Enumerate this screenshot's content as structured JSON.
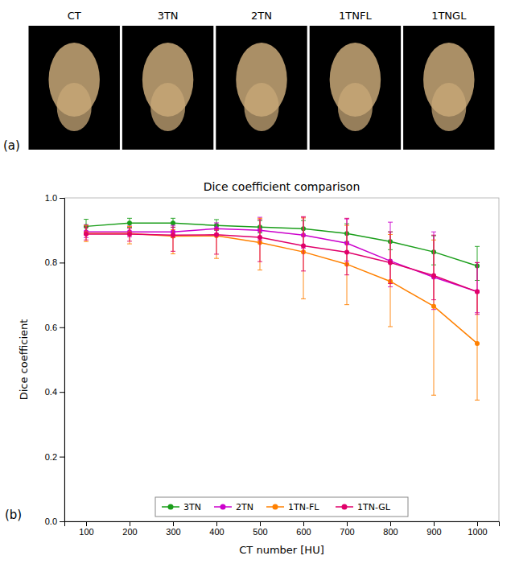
{
  "chart_data": {
    "type": "line",
    "title": "Dice coefficient comparison",
    "x_label": "CT number [HU]",
    "y_label": "Dice coefficient",
    "x": [
      100,
      200,
      300,
      400,
      500,
      600,
      700,
      800,
      900,
      1000
    ],
    "series": [
      {
        "name": "3TN",
        "color": "#1a9e1a",
        "marker": "circle",
        "line_style": "solid",
        "values": [
          0.912,
          0.922,
          0.922,
          0.915,
          0.91,
          0.905,
          0.89,
          0.865,
          0.833,
          0.79
        ],
        "error_upper": [
          0.022,
          0.015,
          0.015,
          0.018,
          0.02,
          0.025,
          0.03,
          0.03,
          0.05,
          0.06
        ],
        "error_lower": [
          0.02,
          0.013,
          0.013,
          0.015,
          0.018,
          0.022,
          0.025,
          0.025,
          0.04,
          0.045
        ]
      },
      {
        "name": "2TN",
        "color": "#cc00cc",
        "marker": "circle",
        "line_style": "solid",
        "values": [
          0.895,
          0.895,
          0.895,
          0.905,
          0.9,
          0.885,
          0.86,
          0.805,
          0.755,
          0.71
        ],
        "error_upper": [
          0.022,
          0.018,
          0.02,
          0.018,
          0.04,
          0.055,
          0.075,
          0.12,
          0.14,
          0.09
        ],
        "error_lower": [
          0.018,
          0.015,
          0.018,
          0.015,
          0.03,
          0.04,
          0.055,
          0.08,
          0.1,
          0.065
        ]
      },
      {
        "name": "1TN-FL",
        "color": "#ff8000",
        "marker": "circle",
        "line_style": "solid",
        "values": [
          0.89,
          0.89,
          0.882,
          0.883,
          0.862,
          0.833,
          0.795,
          0.742,
          0.665,
          0.55
        ],
        "error_upper": [
          0.025,
          0.022,
          0.02,
          0.02,
          0.075,
          0.105,
          0.12,
          0.145,
          0.205,
          0.16
        ],
        "error_lower": [
          0.025,
          0.032,
          0.055,
          0.07,
          0.085,
          0.145,
          0.125,
          0.14,
          0.275,
          0.175
        ]
      },
      {
        "name": "1TN-GL",
        "color": "#e0006a",
        "marker": "circle",
        "line_style": "solid",
        "values": [
          0.888,
          0.888,
          0.885,
          0.886,
          0.878,
          0.852,
          0.832,
          0.8,
          0.76,
          0.71
        ],
        "error_upper": [
          0.022,
          0.018,
          0.025,
          0.018,
          0.055,
          0.09,
          0.105,
          0.095,
          0.125,
          0.09
        ],
        "error_lower": [
          0.018,
          0.022,
          0.05,
          0.06,
          0.075,
          0.078,
          0.07,
          0.065,
          0.075,
          0.07
        ]
      }
    ],
    "xlim": [
      50,
      1050
    ],
    "xticks": [
      100,
      200,
      300,
      400,
      500,
      600,
      700,
      800,
      900,
      1000
    ],
    "ylim": [
      0,
      1
    ],
    "yticks": [
      {
        "value": 0,
        "label": "0.0"
      },
      0.2,
      0.4,
      0.6,
      0.8,
      {
        "value": 1,
        "label": "1.0"
      }
    ],
    "grid": false,
    "legend": "bottom",
    "annotations": [
      "CT",
      "3TN",
      "2TN",
      "1TNFL",
      "1TNGL",
      "(a)",
      "(b)"
    ]
  }
}
